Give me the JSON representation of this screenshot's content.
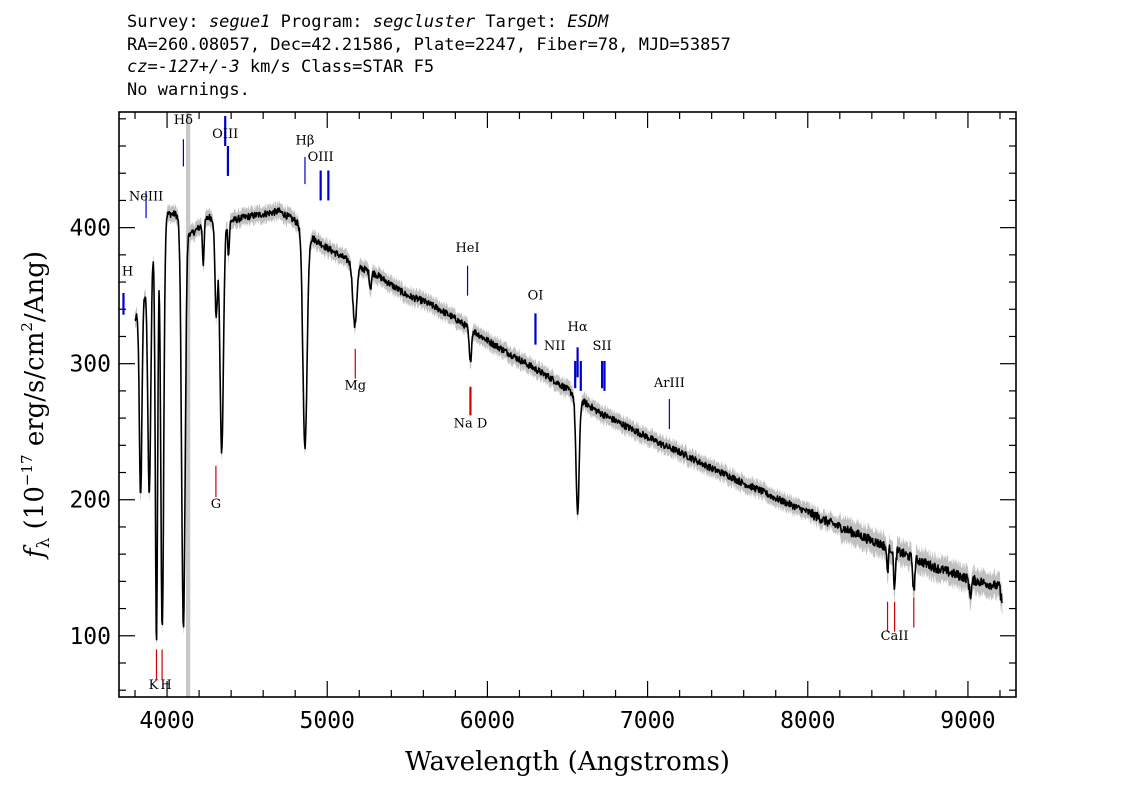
{
  "header": {
    "line1": {
      "survey_label": "Survey:",
      "survey": "segue1",
      "program_label": "Program:",
      "program": "segcluster",
      "target_label": "Target:",
      "target": "ESDM"
    },
    "line2": "RA=260.08057, Dec=42.21586, Plate=2247, Fiber=78, MJD=53857",
    "line3": {
      "cz": "cz=-127+/-3",
      "rest": " km/s Class=STAR F5"
    },
    "line4": "No warnings."
  },
  "chart_data": {
    "type": "line",
    "xlabel": "Wavelength (Angstroms)",
    "ylabel": {
      "f": "f",
      "sub": "λ",
      "pre": " (10",
      "exp1": "−17",
      "mid": " erg/s/cm",
      "exp2": "2",
      "post": "/Ang)"
    },
    "xlim": [
      3700,
      9300
    ],
    "ylim": [
      55,
      485
    ],
    "x_ticks": [
      4000,
      5000,
      6000,
      7000,
      8000,
      9000
    ],
    "y_ticks": [
      100,
      200,
      300,
      400
    ],
    "colors": {
      "flux": "#000000",
      "error_band": "#c0c0c0",
      "emission": "#0000cc",
      "absorption": "#cc0000"
    },
    "masked_region": [
      4118,
      4145
    ],
    "continuum": [
      [
        3800,
        332
      ],
      [
        3860,
        350
      ],
      [
        3900,
        375
      ],
      [
        3950,
        400
      ],
      [
        4000,
        410
      ],
      [
        4050,
        410
      ],
      [
        4100,
        405
      ],
      [
        4150,
        395
      ],
      [
        4200,
        400
      ],
      [
        4260,
        408
      ],
      [
        4320,
        405
      ],
      [
        4400,
        405
      ],
      [
        4500,
        408
      ],
      [
        4600,
        410
      ],
      [
        4700,
        412
      ],
      [
        4800,
        405
      ],
      [
        4900,
        393
      ],
      [
        5000,
        385
      ],
      [
        5100,
        378
      ],
      [
        5200,
        371
      ],
      [
        5300,
        366
      ],
      [
        5400,
        358
      ],
      [
        5500,
        350
      ],
      [
        5600,
        346
      ],
      [
        5700,
        340
      ],
      [
        5800,
        333
      ],
      [
        5900,
        325
      ],
      [
        6000,
        317
      ],
      [
        6100,
        310
      ],
      [
        6200,
        303
      ],
      [
        6300,
        296
      ],
      [
        6400,
        289
      ],
      [
        6500,
        281
      ],
      [
        6600,
        272
      ],
      [
        6700,
        264
      ],
      [
        6800,
        258
      ],
      [
        6900,
        252
      ],
      [
        7000,
        246
      ],
      [
        7100,
        240
      ],
      [
        7200,
        235
      ],
      [
        7300,
        229
      ],
      [
        7400,
        223
      ],
      [
        7500,
        218
      ],
      [
        7600,
        212
      ],
      [
        7700,
        207
      ],
      [
        7800,
        201
      ],
      [
        7900,
        196
      ],
      [
        8000,
        191
      ],
      [
        8100,
        185
      ],
      [
        8200,
        180
      ],
      [
        8300,
        175
      ],
      [
        8400,
        170
      ],
      [
        8500,
        165
      ],
      [
        8600,
        160
      ],
      [
        8700,
        155
      ],
      [
        8800,
        150
      ],
      [
        8900,
        146
      ],
      [
        9000,
        142
      ],
      [
        9100,
        139
      ],
      [
        9200,
        136
      ]
    ],
    "absorption_features": [
      {
        "center": 3835,
        "depth": 140,
        "width": 8
      },
      {
        "center": 3889,
        "depth": 165,
        "width": 9
      },
      {
        "center": 3934,
        "depth": 300,
        "width": 7
      },
      {
        "center": 3970,
        "depth": 300,
        "width": 9
      },
      {
        "center": 4102,
        "depth": 300,
        "width": 11
      },
      {
        "center": 4226,
        "depth": 30,
        "width": 5
      },
      {
        "center": 4307,
        "depth": 70,
        "width": 8
      },
      {
        "center": 4341,
        "depth": 170,
        "width": 11
      },
      {
        "center": 4384,
        "depth": 25,
        "width": 5
      },
      {
        "center": 4861,
        "depth": 160,
        "width": 13
      },
      {
        "center": 5172,
        "depth": 45,
        "width": 12
      },
      {
        "center": 5270,
        "depth": 12,
        "width": 6
      },
      {
        "center": 5893,
        "depth": 25,
        "width": 7
      },
      {
        "center": 6563,
        "depth": 85,
        "width": 10
      },
      {
        "center": 8498,
        "depth": 18,
        "width": 5
      },
      {
        "center": 8542,
        "depth": 28,
        "width": 6
      },
      {
        "center": 8662,
        "depth": 25,
        "width": 6
      },
      {
        "center": 9015,
        "depth": 12,
        "width": 7
      }
    ],
    "line_markers": [
      {
        "label": "H",
        "type": "emission",
        "x": 3728,
        "y_label": 365,
        "y_top": 352,
        "y_bottom": 336,
        "thick": true
      },
      {
        "label": "NeIII",
        "type": "emission",
        "x": 3869,
        "y_label": 420,
        "y_top": 427,
        "y_bottom": 407
      },
      {
        "label": "Hδ",
        "type": "emission",
        "x": 4102,
        "y_label": 476,
        "y_top": 465,
        "y_bottom": 445
      },
      {
        "label": "OIII",
        "type": "emission",
        "x": 4363,
        "y_label": 466,
        "y_top": 482,
        "y_bottom": 460,
        "thick": true
      },
      {
        "label": "OIII",
        "type": "emission",
        "x": 4380,
        "y_label": 466,
        "y_top": 460,
        "y_bottom": 438,
        "thick": true,
        "no_label": true
      },
      {
        "label": "Hβ",
        "type": "emission",
        "x": 4861,
        "y_label": 461,
        "y_top": 452,
        "y_bottom": 432
      },
      {
        "label": "OIII",
        "type": "emission",
        "x": 4959,
        "y_label": 449,
        "y_top": 442,
        "y_bottom": 420,
        "thick": true
      },
      {
        "label": "OIII",
        "type": "emission",
        "x": 5007,
        "y_label": 449,
        "y_top": 442,
        "y_bottom": 420,
        "thick": true,
        "no_label": true
      },
      {
        "label": "HeI",
        "type": "emission",
        "x": 5876,
        "y_label": 382,
        "y_top": 372,
        "y_bottom": 350
      },
      {
        "label": "OI",
        "type": "emission",
        "x": 6300,
        "y_label": 347,
        "y_top": 337,
        "y_bottom": 314,
        "thick": true
      },
      {
        "label": "Hα",
        "type": "emission",
        "x": 6563,
        "y_label": 324,
        "y_top": 312,
        "y_bottom": 290,
        "thick": true
      },
      {
        "label": "NII",
        "type": "emission",
        "x": 6548,
        "y_label": 310,
        "y_top": 302,
        "y_bottom": 282,
        "thick": true,
        "no_label": true
      },
      {
        "label": "NII",
        "type": "emission",
        "x": 6583,
        "y_label": 310,
        "y_top": 302,
        "y_bottom": 280,
        "thick": true,
        "no_label": true
      },
      {
        "label": "NII",
        "type": "emission",
        "x": 6420,
        "y_label": 310,
        "y_top": 0,
        "y_bottom": 0,
        "label_only": true
      },
      {
        "label": "SII",
        "type": "emission",
        "x": 6716,
        "y_label": 310,
        "y_top": 302,
        "y_bottom": 282,
        "thick": true
      },
      {
        "label": "SII",
        "type": "emission",
        "x": 6731,
        "y_label": 310,
        "y_top": 302,
        "y_bottom": 280,
        "thick": true,
        "no_label": true
      },
      {
        "label": "ArIII",
        "type": "emission",
        "x": 7136,
        "y_label": 283,
        "y_top": 274,
        "y_bottom": 252
      },
      {
        "label": "K",
        "type": "absorption",
        "x": 3934,
        "y_label": 61,
        "y_top": 68,
        "y_bottom": 90
      },
      {
        "label": "H",
        "type": "absorption",
        "x": 3969,
        "y_label": 61,
        "y_top": 68,
        "y_bottom": 90
      },
      {
        "label": "G",
        "type": "absorption",
        "x": 4305,
        "y_label": 194,
        "y_top": 202,
        "y_bottom": 225
      },
      {
        "label": "Mg",
        "type": "absorption",
        "x": 5175,
        "y_label": 281,
        "y_top": 289,
        "y_bottom": 311
      },
      {
        "label": "Na D",
        "type": "absorption",
        "x": 5894,
        "y_label": 253,
        "y_top": 262,
        "y_bottom": 283,
        "thick": true
      },
      {
        "label": "CaII",
        "type": "absorption",
        "x": 8498,
        "y_label": 97,
        "y_top": 103,
        "y_bottom": 125,
        "no_label": true
      },
      {
        "label": "CaII",
        "type": "absorption",
        "x": 8542,
        "y_label": 97,
        "y_top": 103,
        "y_bottom": 125
      },
      {
        "label": "CaII",
        "type": "absorption",
        "x": 8662,
        "y_label": 97,
        "y_top": 106,
        "y_bottom": 128,
        "no_label": true
      }
    ]
  }
}
